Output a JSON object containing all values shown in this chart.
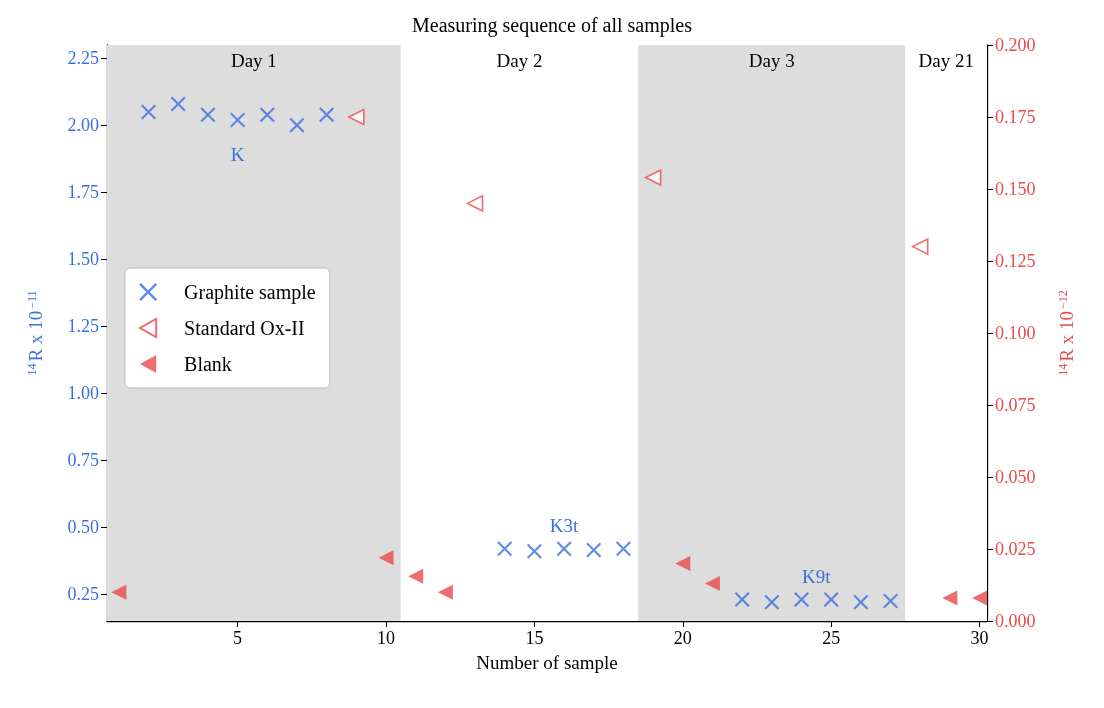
{
  "chart_data": {
    "type": "scatter",
    "title": "Measuring sequence of all samples",
    "xlabel": "Number of sample",
    "ylabel": "$^{14}$R x 10$^{−11}$",
    "y2label": "$^{14}$R x 10$^{−12}$",
    "series": [
      {
        "name": "Graphite sample",
        "color": "#3b6fdc",
        "marker": "cross",
        "x": [
          2,
          3,
          4,
          5,
          6,
          7,
          8,
          14,
          15,
          16,
          17,
          18,
          22,
          23,
          24,
          25,
          26,
          27
        ],
        "values": [
          2.05,
          2.08,
          2.04,
          2.02,
          2.04,
          2.0,
          2.04,
          0.42,
          0.41,
          0.42,
          0.415,
          0.42,
          0.23,
          0.22,
          0.23,
          0.23,
          0.22,
          0.225
        ]
      },
      {
        "name": "Standard Ox-II",
        "color": "#e84a4a",
        "marker": "triangle-open",
        "axis": "y2",
        "x": [
          9,
          13,
          19,
          28
        ],
        "values": [
          0.175,
          0.145,
          0.154,
          0.13
        ]
      },
      {
        "name": "Blank",
        "color": "#e84a4a",
        "marker": "triangle",
        "axis": "y2",
        "x": [
          1,
          10,
          11,
          12,
          20,
          21,
          29,
          30
        ],
        "values": [
          0.01,
          0.022,
          0.0155,
          0.01,
          0.02,
          0.013,
          0.008,
          0.008
        ]
      }
    ],
    "xlim": [
      0.6,
      30.25
    ],
    "xticks": [
      5,
      10,
      15,
      20,
      25,
      30
    ],
    "ylim": [
      0.15,
      2.3
    ],
    "yticks": [
      {
        "value": 0.25,
        "label": "0.25"
      },
      {
        "value": 0.5,
        "label": "0.50"
      },
      {
        "value": 0.75,
        "label": "0.75"
      },
      {
        "value": 1,
        "label": "1.00"
      },
      {
        "value": 1.25,
        "label": "1.25"
      },
      {
        "value": 1.5,
        "label": "1.50"
      },
      {
        "value": 1.75,
        "label": "1.75"
      },
      {
        "value": 2,
        "label": "2.00"
      },
      {
        "value": 2.25,
        "label": "2.25"
      }
    ],
    "y2lim": [
      0,
      0.2
    ],
    "y2ticks": [
      {
        "value": 0,
        "label": "0.000"
      },
      {
        "value": 0.025,
        "label": "0.025"
      },
      {
        "value": 0.05,
        "label": "0.050"
      },
      {
        "value": 0.075,
        "label": "0.075"
      },
      {
        "value": 0.1,
        "label": "0.100"
      },
      {
        "value": 0.125,
        "label": "0.125"
      },
      {
        "value": 0.15,
        "label": "0.150"
      },
      {
        "value": 0.175,
        "label": "0.175"
      },
      {
        "value": 0.2,
        "label": "0.200"
      }
    ],
    "bands": [
      {
        "axis": "x",
        "from": 0.6,
        "to": 10.5,
        "label": "Day 1",
        "color": "#dddddd"
      },
      {
        "axis": "x",
        "from": 10.5,
        "to": 18.5,
        "label": "Day 2",
        "color": "#ffffff"
      },
      {
        "axis": "x",
        "from": 18.5,
        "to": 27.5,
        "label": "Day 3",
        "color": "#dddddd"
      },
      {
        "axis": "x",
        "from": 27.5,
        "to": 30.25,
        "label": "Day 21",
        "color": "#ffffff"
      }
    ],
    "annotations": [
      "K",
      "K3t",
      "K9t"
    ],
    "legend": "left",
    "grid": false
  }
}
